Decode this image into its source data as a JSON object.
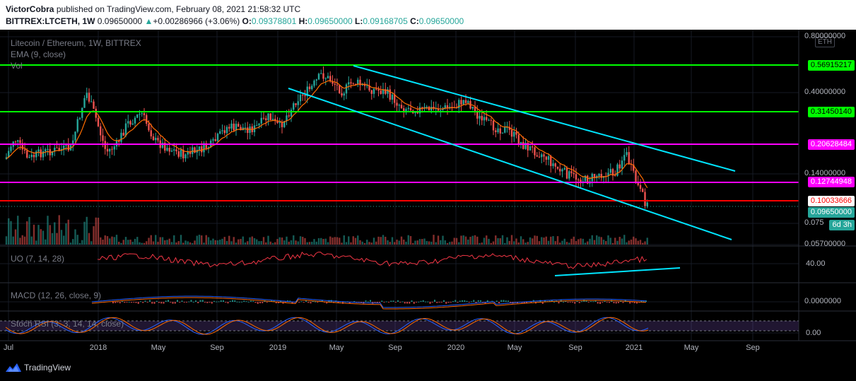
{
  "header": {
    "author": "VictorCobra",
    "published_text": "published on TradingView.com, February 08, 2021 21:58:32 UTC",
    "symbol": "BITTREX:LTCETH, 1W",
    "last": "0.09650000",
    "change_arrow": "▲",
    "change": "+0.00286966 (+3.06%)",
    "o_label": "O:",
    "o": "0.09378801",
    "h_label": "H:",
    "h": "0.09650000",
    "l_label": "L:",
    "l": "0.09168705",
    "c_label": "C:",
    "c": "0.09650000"
  },
  "legends": {
    "main_title": "Litecoin / Ethereum, 1W, BITTREX",
    "ema": "EMA (9, close)",
    "vol": "Vol",
    "uo": "UO (7, 14, 28)",
    "macd": "MACD (12, 26, close, 9)",
    "stoch": "Stoch RSI (3, 3, 14, 14, close)"
  },
  "currency_tag": "ETH",
  "price_tags": [
    {
      "text": "0.56915217",
      "bg": "#00ff00",
      "fg": "#000000"
    },
    {
      "text": "0.31450140",
      "bg": "#00ff00",
      "fg": "#000000"
    },
    {
      "text": "0.20628484",
      "bg": "#ff00ff",
      "fg": "#ffffff"
    },
    {
      "text": "0.12744948",
      "bg": "#ff00ff",
      "fg": "#ffffff"
    },
    {
      "text": "0.10033666",
      "bg": "#ffffff",
      "fg": "#ff0000"
    },
    {
      "text": "0.09650000",
      "bg": "#26a69a",
      "fg": "#ffffff"
    },
    {
      "text": "6d 3h",
      "bg": "#26a69a",
      "fg": "#ffffff"
    }
  ],
  "price_scale": [
    "0.80000000",
    "0.40000000",
    "0.14000000",
    "0.075",
    "0.05700000"
  ],
  "uo_scale": [
    "40.00"
  ],
  "macd_scale": [
    "0.0000000"
  ],
  "stoch_scale": [
    "0.00"
  ],
  "x_axis": [
    "Jul",
    "2018",
    "May",
    "Sep",
    "2019",
    "May",
    "Sep",
    "2020",
    "May",
    "Sep",
    "2021",
    "May",
    "Sep"
  ],
  "colors": {
    "up": "#26a69a",
    "down": "#ef5350",
    "ema": "#ff6d00",
    "green_level": "#00ff00",
    "magenta_level": "#ff00ff",
    "red_level": "#ff0000",
    "channel": "#00e5ff"
  },
  "footer": {
    "brand": "TradingView",
    "logo": "tradingview-logo-icon"
  }
}
